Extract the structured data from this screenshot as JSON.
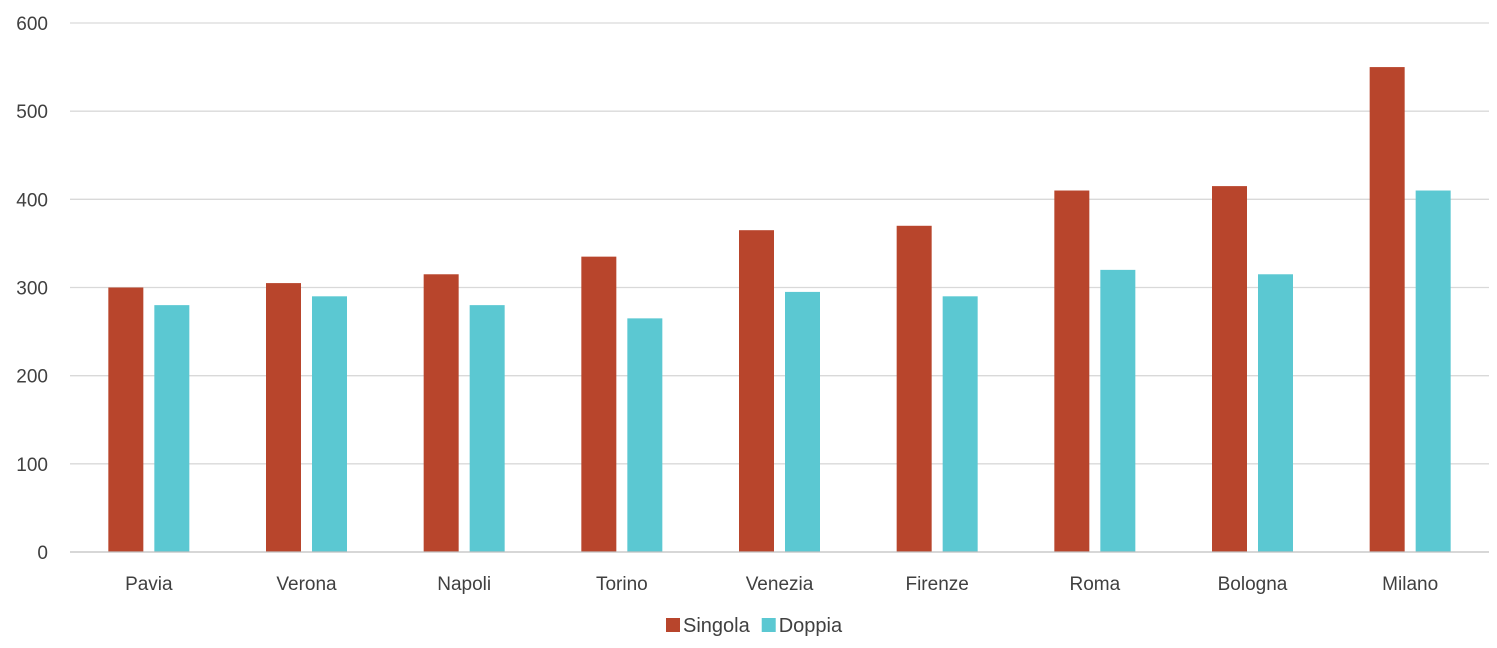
{
  "chart_data": {
    "type": "bar",
    "title": "",
    "xlabel": "",
    "ylabel": "",
    "categories": [
      "Pavia",
      "Verona",
      "Napoli",
      "Torino",
      "Venezia",
      "Firenze",
      "Roma",
      "Bologna",
      "Milano"
    ],
    "series": [
      {
        "name": "Singola",
        "color": "#b8452c",
        "values": [
          300,
          305,
          315,
          335,
          365,
          370,
          410,
          415,
          550
        ]
      },
      {
        "name": "Doppia",
        "color": "#5bc8d2",
        "values": [
          280,
          290,
          280,
          265,
          295,
          290,
          320,
          315,
          410
        ]
      }
    ],
    "ylim": [
      0,
      600
    ],
    "yticks": [
      0,
      100,
      200,
      300,
      400,
      500,
      600
    ],
    "grid": true,
    "legend_position": "bottom-center"
  }
}
